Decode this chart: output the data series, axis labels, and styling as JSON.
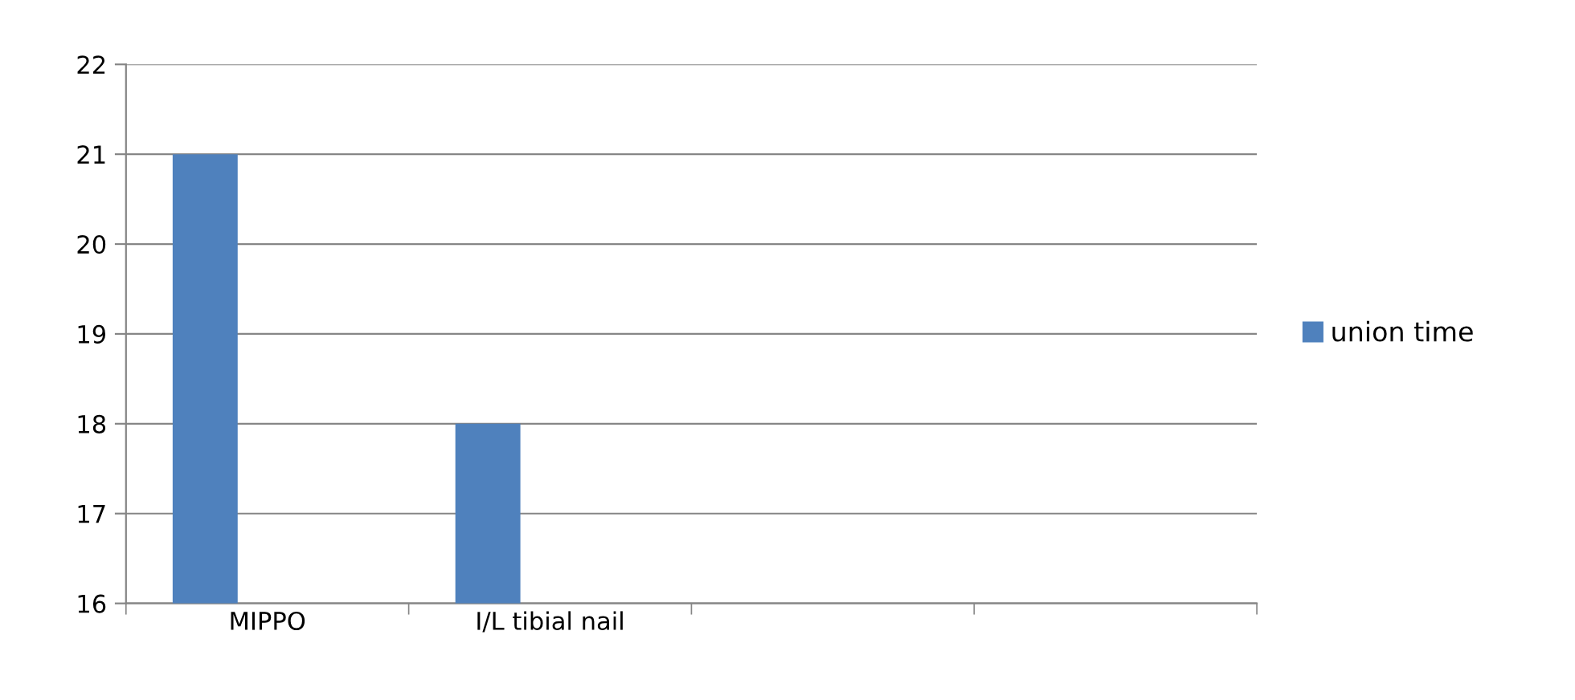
{
  "chart_data": {
    "type": "bar",
    "categories": [
      "MIPPO",
      "I/L tibial nail",
      null,
      null
    ],
    "series": [
      {
        "name": "union time",
        "color": "#4f81bd",
        "values": [
          21,
          18,
          null,
          null
        ]
      }
    ],
    "ylim": [
      16,
      22
    ],
    "yticks": [
      16,
      17,
      18,
      19,
      20,
      21,
      22
    ],
    "grid": "y",
    "legend": "right"
  }
}
